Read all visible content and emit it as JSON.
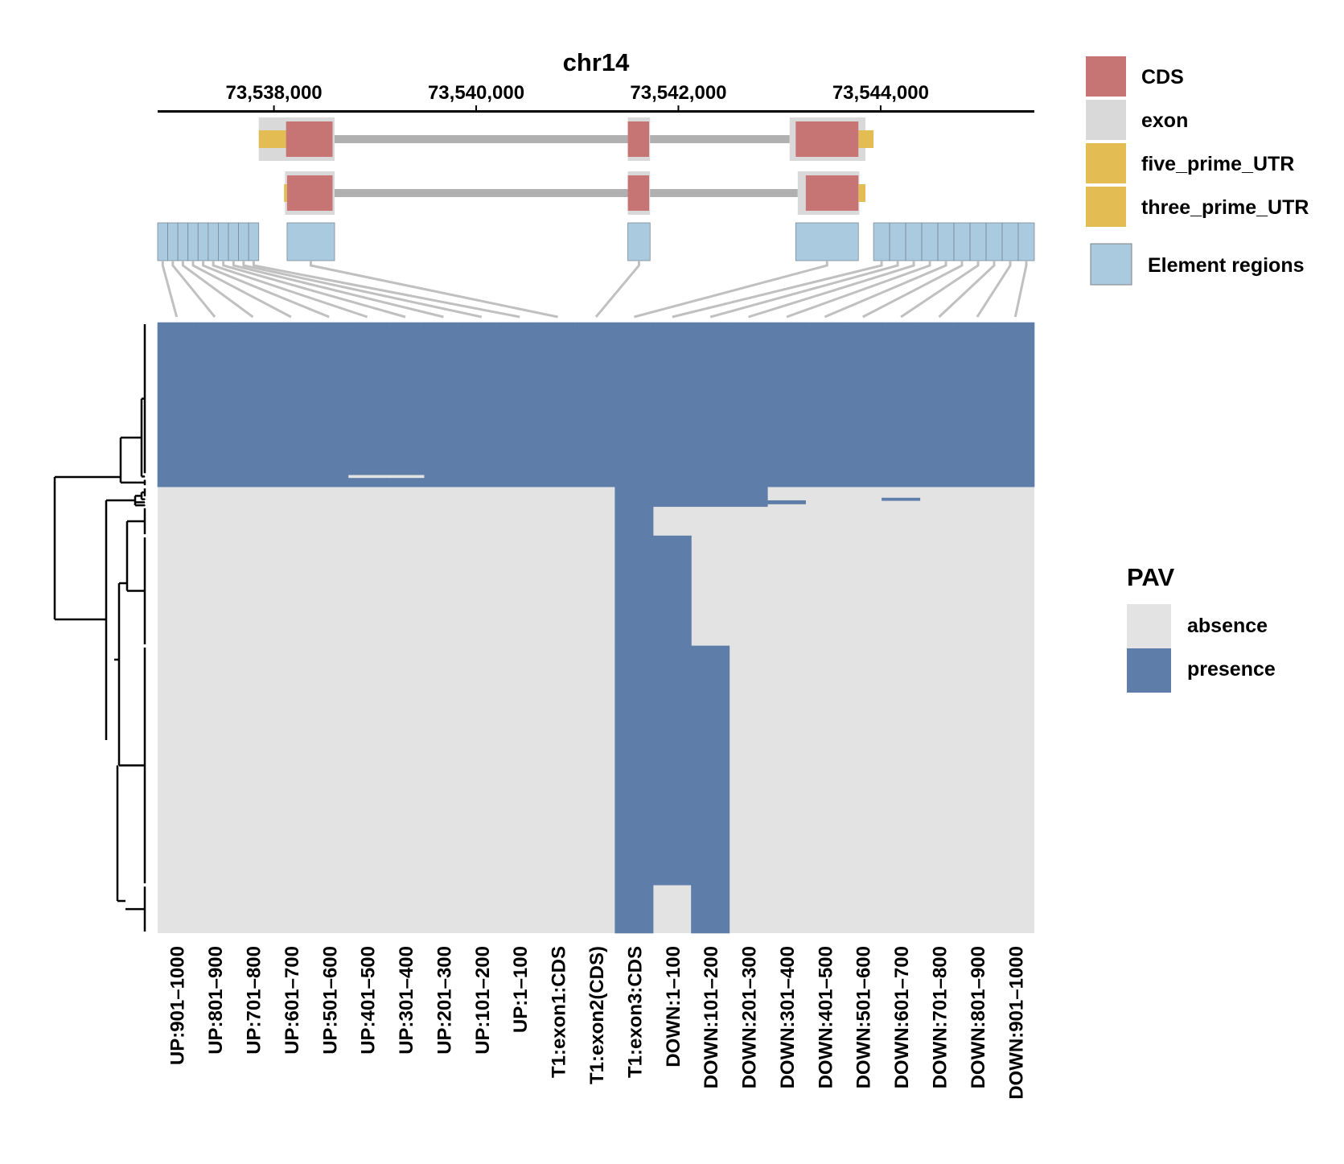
{
  "chart_data": {
    "type": "heatmap",
    "title": "chr14",
    "axis": {
      "ticks": [
        "73,538,000",
        "73,540,000",
        "73,542,000",
        "73,544,000"
      ],
      "tick_values": [
        73538000,
        73540000,
        73542000,
        73544000
      ],
      "range": [
        73536850,
        73545520
      ]
    },
    "transcripts": [
      {
        "exons": [
          [
            73537850,
            73538600
          ],
          [
            73541500,
            73541720
          ],
          [
            73543100,
            73543850
          ]
        ],
        "cds": [
          [
            73538120,
            73538580
          ],
          [
            73541500,
            73541710
          ],
          [
            73543160,
            73543780
          ]
        ],
        "five_prime_utr": [
          [
            73537850,
            73538120
          ]
        ],
        "three_prime_utr": [
          [
            73543780,
            73543930
          ]
        ]
      },
      {
        "exons": [
          [
            73538110,
            73538600
          ],
          [
            73541500,
            73541720
          ],
          [
            73543180,
            73543790
          ]
        ],
        "cds": [
          [
            73538130,
            73538580
          ],
          [
            73541500,
            73541710
          ],
          [
            73543260,
            73543780
          ]
        ],
        "five_prime_utr": [
          [
            73538100,
            73538130
          ]
        ],
        "three_prime_utr": [
          [
            73543780,
            73543850
          ]
        ]
      }
    ],
    "element_regions": [
      [
        73536850,
        73537850
      ],
      [
        73538130,
        73538600
      ],
      [
        73541500,
        73541720
      ],
      [
        73543160,
        73543780
      ],
      [
        73543930,
        73545520
      ]
    ],
    "columns": [
      "UP:901–1000",
      "UP:801–900",
      "UP:701–800",
      "UP:601–700",
      "UP:501–600",
      "UP:401–500",
      "UP:301–400",
      "UP:201–300",
      "UP:101–200",
      "UP:1–100",
      "T1:exon1:CDS",
      "T1:exon2(CDS)",
      "T1:exon3:CDS",
      "DOWN:1–100",
      "DOWN:101–200",
      "DOWN:201–300",
      "DOWN:301–400",
      "DOWN:401–500",
      "DOWN:501–600",
      "DOWN:601–700",
      "DOWN:701–800",
      "DOWN:801–900",
      "DOWN:901–1000"
    ],
    "heatmap_rows": [
      {
        "weight": 177,
        "present": [
          0,
          1,
          2,
          3,
          4,
          5,
          6,
          7,
          8,
          9,
          10,
          11,
          12,
          13,
          14,
          15,
          16,
          17,
          18,
          19,
          20,
          21,
          22
        ]
      },
      {
        "weight": 4,
        "present": [
          0,
          1,
          2,
          3,
          4,
          7,
          8,
          9,
          10,
          11,
          12,
          13,
          14,
          15,
          16,
          17,
          18,
          19,
          20,
          21,
          22
        ]
      },
      {
        "weight": 10,
        "present": [
          0,
          1,
          2,
          3,
          4,
          5,
          6,
          7,
          8,
          9,
          10,
          11,
          12,
          13,
          14,
          15,
          16,
          17,
          18,
          19,
          20,
          21,
          22
        ]
      },
      {
        "weight": 13,
        "present": [
          12,
          13,
          14,
          15
        ]
      },
      {
        "weight": 3,
        "present": [
          12,
          13,
          14,
          15,
          19
        ]
      },
      {
        "weight": 4,
        "present": [
          12,
          13,
          14,
          15,
          16
        ]
      },
      {
        "weight": 3,
        "present": [
          12,
          13,
          14,
          15
        ]
      },
      {
        "weight": 34,
        "present": [
          12
        ]
      },
      {
        "weight": 128,
        "present": [
          12,
          13
        ]
      },
      {
        "weight": 278,
        "present": [
          12,
          13,
          14
        ]
      },
      {
        "weight": 56,
        "present": [
          12,
          14
        ]
      }
    ],
    "legend_features": [
      {
        "label": "CDS",
        "color": "#c67474"
      },
      {
        "label": "exon",
        "color": "#d9d9d9"
      },
      {
        "label": "five_prime_UTR",
        "color": "#e3bc54"
      },
      {
        "label": "three_prime_UTR",
        "color": "#e3bc54"
      },
      {
        "label": "Element regions",
        "color": "#a9cadf"
      }
    ],
    "pav_legend": {
      "title": "PAV",
      "items": [
        {
          "label": "absence",
          "color": "#e3e3e3"
        },
        {
          "label": "presence",
          "color": "#5e7da9"
        }
      ]
    }
  }
}
